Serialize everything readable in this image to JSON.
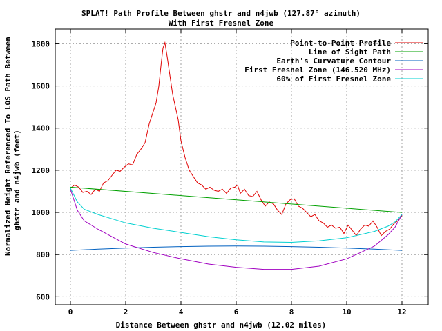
{
  "chart_data": {
    "type": "line",
    "title": "SPLAT! Path Profile Between ghstr and n4jwb (127.87° azimuth)",
    "subtitle": "With First Fresnel Zone",
    "xlabel": "Distance Between ghstr and n4jwb (12.02 miles)",
    "ylabel_lines": [
      "Normalized Height Referenced To LOS Path Between",
      "ghstr and n4jwb (feet)"
    ],
    "xlim": [
      -0.55,
      12.95
    ],
    "ylim": [
      562,
      1870
    ],
    "x_ticks": [
      0,
      2,
      4,
      6,
      8,
      10,
      12
    ],
    "y_ticks": [
      600,
      800,
      1000,
      1200,
      1400,
      1600,
      1800
    ],
    "grid": true,
    "legend_position": "top-right",
    "series": [
      {
        "name": "Point-to-Point Profile",
        "color": "#e00000",
        "x": [
          0.0,
          0.15,
          0.3,
          0.45,
          0.6,
          0.75,
          0.9,
          1.05,
          1.2,
          1.35,
          1.5,
          1.65,
          1.8,
          1.95,
          2.1,
          2.25,
          2.4,
          2.55,
          2.7,
          2.85,
          3.0,
          3.1,
          3.2,
          3.28,
          3.35,
          3.42,
          3.5,
          3.6,
          3.7,
          3.8,
          3.9,
          4.0,
          4.15,
          4.3,
          4.45,
          4.6,
          4.75,
          4.9,
          5.05,
          5.2,
          5.35,
          5.5,
          5.65,
          5.8,
          5.95,
          6.05,
          6.15,
          6.3,
          6.45,
          6.6,
          6.75,
          6.9,
          7.05,
          7.2,
          7.35,
          7.5,
          7.65,
          7.8,
          7.95,
          8.1,
          8.25,
          8.4,
          8.55,
          8.7,
          8.85,
          9.0,
          9.15,
          9.3,
          9.45,
          9.6,
          9.75,
          9.9,
          10.05,
          10.2,
          10.35,
          10.5,
          10.65,
          10.8,
          10.95,
          11.1,
          11.25,
          11.4,
          11.55,
          11.7,
          11.85,
          12.0
        ],
        "y": [
          1115,
          1130,
          1120,
          1095,
          1100,
          1085,
          1110,
          1100,
          1140,
          1150,
          1175,
          1200,
          1195,
          1215,
          1230,
          1225,
          1275,
          1300,
          1330,
          1420,
          1480,
          1520,
          1600,
          1700,
          1780,
          1805,
          1740,
          1650,
          1560,
          1500,
          1440,
          1340,
          1260,
          1200,
          1170,
          1140,
          1130,
          1110,
          1120,
          1105,
          1100,
          1110,
          1090,
          1115,
          1120,
          1130,
          1090,
          1110,
          1080,
          1075,
          1100,
          1060,
          1030,
          1050,
          1040,
          1010,
          990,
          1040,
          1060,
          1065,
          1030,
          1020,
          1000,
          980,
          990,
          960,
          950,
          930,
          940,
          925,
          930,
          900,
          940,
          915,
          890,
          920,
          940,
          935,
          960,
          930,
          890,
          910,
          920,
          945,
          960,
          985
        ]
      },
      {
        "name": "Line of Sight Path",
        "color": "#00a000",
        "x": [
          0,
          12
        ],
        "y": [
          1120,
          1000
        ]
      },
      {
        "name": "Earth's Curvature Contour",
        "color": "#0060c0",
        "x": [
          0,
          1,
          2,
          3,
          4,
          5,
          6,
          7,
          8,
          9,
          10,
          11,
          12
        ],
        "y": [
          820,
          826,
          831,
          835,
          838,
          840,
          841,
          840,
          838,
          835,
          831,
          826,
          820
        ]
      },
      {
        "name": "First Fresnel Zone (146.520 MHz)",
        "color": "#a000c0",
        "x": [
          0,
          0.25,
          0.5,
          1,
          1.5,
          2,
          3,
          4,
          5,
          6,
          7,
          8,
          9,
          10,
          10.5,
          11,
          11.5,
          11.75,
          12
        ],
        "y": [
          1110,
          1010,
          960,
          920,
          885,
          850,
          810,
          780,
          755,
          740,
          730,
          730,
          745,
          780,
          810,
          840,
          895,
          930,
          990
        ]
      },
      {
        "name": "60% of First Fresnel Zone",
        "color": "#00d0d0",
        "x": [
          0,
          0.25,
          0.5,
          1,
          1.5,
          2,
          3,
          4,
          5,
          6,
          7,
          8,
          9,
          10,
          10.5,
          11,
          11.5,
          11.75,
          12
        ],
        "y": [
          1115,
          1050,
          1015,
          990,
          970,
          950,
          925,
          905,
          885,
          870,
          860,
          858,
          865,
          880,
          895,
          910,
          935,
          955,
          990
        ]
      }
    ]
  }
}
